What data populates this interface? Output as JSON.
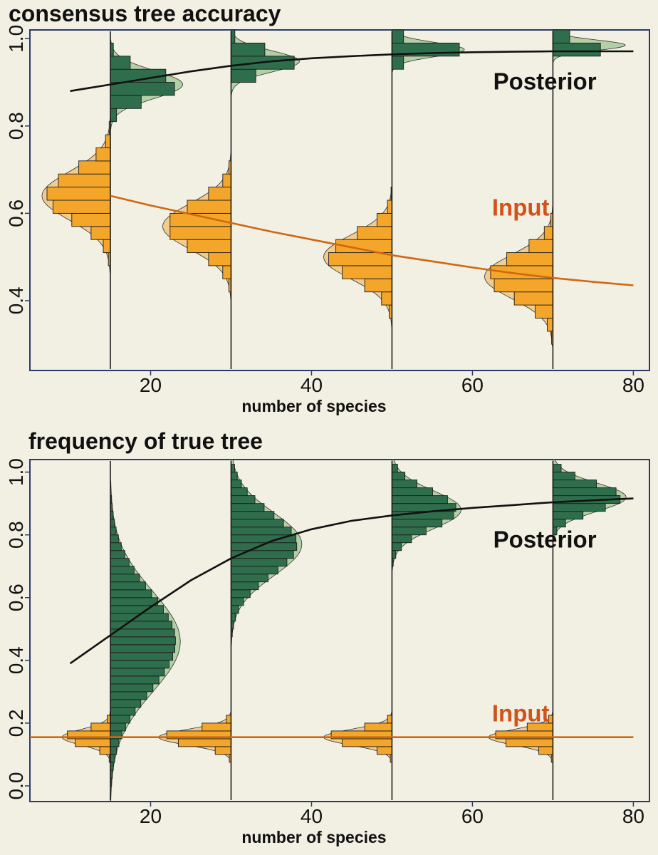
{
  "colors": {
    "posterior_fill": "#2f6e4c",
    "posterior_curve": "#9fc490",
    "input_fill": "#f4a62a",
    "input_curve": "#f0c070",
    "posterior_line": "#111111",
    "input_line": "#d06810",
    "input_label": "#d2521a",
    "frame": "#2b3a6e",
    "background": "#f2efe3"
  },
  "chart_data": [
    {
      "type": "line",
      "title": "consensus tree accuracy",
      "xlabel": "number of species",
      "ylabel": "",
      "xlim": [
        5,
        82
      ],
      "ylim": [
        0.24,
        1.02
      ],
      "xticks": [
        20,
        40,
        60,
        80
      ],
      "yticks": [
        0.4,
        0.6,
        0.8,
        1.0
      ],
      "ytick_labels": [
        "0.4",
        "0.6",
        "0.8",
        "1.0"
      ],
      "grid": false,
      "legend": "none",
      "series": [
        {
          "name": "Posterior",
          "x": [
            10,
            15,
            20,
            25,
            30,
            35,
            40,
            45,
            50,
            55,
            60,
            65,
            70,
            75,
            80
          ],
          "y": [
            0.88,
            0.895,
            0.91,
            0.925,
            0.938,
            0.948,
            0.955,
            0.96,
            0.964,
            0.967,
            0.969,
            0.97,
            0.971,
            0.971,
            0.971
          ]
        },
        {
          "name": "Input",
          "x": [
            15,
            20,
            25,
            30,
            35,
            40,
            45,
            50,
            55,
            60,
            65,
            70,
            75,
            80
          ],
          "y": [
            0.64,
            0.618,
            0.598,
            0.578,
            0.558,
            0.54,
            0.522,
            0.504,
            0.49,
            0.476,
            0.463,
            0.452,
            0.443,
            0.435
          ]
        }
      ],
      "distributions": [
        {
          "x": 15,
          "posterior": {
            "mean": 0.895,
            "sd": 0.032,
            "peak": 9
          },
          "input": {
            "mean": 0.64,
            "sd": 0.055,
            "peak": 8.5
          }
        },
        {
          "x": 30,
          "posterior": {
            "mean": 0.948,
            "sd": 0.024,
            "peak": 8.5
          },
          "input": {
            "mean": 0.57,
            "sd": 0.052,
            "peak": 8.5
          }
        },
        {
          "x": 50,
          "posterior": {
            "mean": 0.975,
            "sd": 0.016,
            "peak": 9
          },
          "input": {
            "mean": 0.5,
            "sd": 0.05,
            "peak": 8.5
          }
        },
        {
          "x": 70,
          "posterior": {
            "mean": 0.985,
            "sd": 0.012,
            "peak": 9
          },
          "input": {
            "mean": 0.455,
            "sd": 0.05,
            "peak": 8.5
          }
        }
      ],
      "annotations": [
        {
          "text": "Posterior",
          "x": 69,
          "y": 0.884,
          "color": "#111111"
        },
        {
          "text": "Input",
          "x": 66,
          "y": 0.595,
          "color": "#d2521a"
        }
      ]
    },
    {
      "type": "line",
      "title": "frequency of true tree",
      "xlabel": "number of species",
      "ylabel": "",
      "xlim": [
        5,
        82
      ],
      "ylim": [
        -0.05,
        1.04
      ],
      "xticks": [
        20,
        40,
        60,
        80
      ],
      "yticks": [
        0.0,
        0.2,
        0.4,
        0.6,
        0.8,
        1.0
      ],
      "ytick_labels": [
        "0.0",
        "0.2",
        "0.4",
        "0.6",
        "0.8",
        "1.0"
      ],
      "grid": false,
      "legend": "none",
      "series": [
        {
          "name": "Posterior",
          "x": [
            10,
            15,
            20,
            25,
            30,
            35,
            40,
            45,
            50,
            55,
            60,
            65,
            70,
            75,
            80
          ],
          "y": [
            0.39,
            0.48,
            0.57,
            0.655,
            0.725,
            0.78,
            0.818,
            0.845,
            0.862,
            0.875,
            0.886,
            0.895,
            0.904,
            0.91,
            0.916
          ]
        },
        {
          "name": "Input",
          "x": [
            5,
            80
          ],
          "y": [
            0.155,
            0.155
          ]
        }
      ],
      "distributions": [
        {
          "x": 15,
          "posterior": {
            "mean": 0.46,
            "sd": 0.16,
            "peak": 8.7
          },
          "input": {
            "mean": 0.155,
            "sd": 0.025,
            "peak": 6
          }
        },
        {
          "x": 30,
          "posterior": {
            "mean": 0.77,
            "sd": 0.1,
            "peak": 8.8
          },
          "input": {
            "mean": 0.155,
            "sd": 0.025,
            "peak": 9
          }
        },
        {
          "x": 50,
          "posterior": {
            "mean": 0.88,
            "sd": 0.06,
            "peak": 8.6
          },
          "input": {
            "mean": 0.155,
            "sd": 0.025,
            "peak": 8.5
          }
        },
        {
          "x": 70,
          "posterior": {
            "mean": 0.92,
            "sd": 0.045,
            "peak": 9.1
          },
          "input": {
            "mean": 0.155,
            "sd": 0.025,
            "peak": 8
          }
        }
      ],
      "annotations": [
        {
          "text": "Posterior",
          "x": 69,
          "y": 0.76,
          "color": "#111111"
        },
        {
          "text": "Input",
          "x": 66,
          "y": 0.205,
          "color": "#d2521a"
        }
      ]
    }
  ]
}
